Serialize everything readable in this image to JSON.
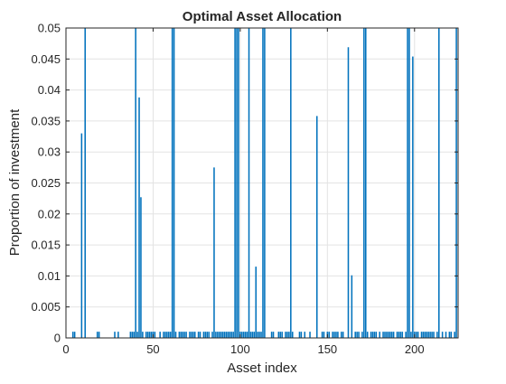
{
  "chart_data": {
    "type": "bar",
    "title": "Optimal Asset Allocation",
    "xlabel": "Asset index",
    "ylabel": "Proportion of investment",
    "xlim": [
      0,
      225
    ],
    "ylim": [
      0,
      0.05
    ],
    "x_ticks": [
      0,
      50,
      100,
      150,
      200
    ],
    "x_tick_labels": [
      "0",
      "50",
      "100",
      "150",
      "200"
    ],
    "y_ticks": [
      0,
      0.005,
      0.01,
      0.015,
      0.02,
      0.025,
      0.03,
      0.035,
      0.04,
      0.045,
      0.05
    ],
    "y_tick_labels": [
      "0",
      "0.005",
      "0.01",
      "0.015",
      "0.02",
      "0.025",
      "0.03",
      "0.035",
      "0.04",
      "0.045",
      "0.05"
    ],
    "grid": true,
    "bar_color": "#0072BD",
    "series": [
      {
        "x": [
          4,
          5,
          9,
          11,
          18,
          19,
          28,
          30,
          37,
          38,
          39,
          40,
          41,
          42,
          43,
          44,
          46,
          47,
          48,
          49,
          50,
          51,
          54,
          56,
          57,
          58,
          59,
          60,
          61,
          62,
          63,
          65,
          66,
          67,
          68,
          69,
          71,
          72,
          73,
          74,
          76,
          77,
          79,
          80,
          81,
          82,
          84,
          85,
          86,
          87,
          88,
          89,
          90,
          91,
          92,
          93,
          94,
          95,
          96,
          97,
          98,
          99,
          100,
          101,
          102,
          103,
          104,
          105,
          106,
          107,
          108,
          109,
          110,
          111,
          112,
          113,
          114,
          118,
          119,
          122,
          123,
          124,
          126,
          127,
          128,
          129,
          130,
          134,
          135,
          137,
          140,
          144,
          147,
          148,
          150,
          151,
          153,
          154,
          155,
          156,
          158,
          159,
          162,
          164,
          166,
          167,
          168,
          170,
          171,
          172,
          173,
          175,
          176,
          177,
          178,
          180,
          182,
          183,
          184,
          185,
          186,
          187,
          188,
          190,
          191,
          192,
          193,
          195,
          196,
          197,
          198,
          199,
          200,
          201,
          202,
          204,
          205,
          206,
          207,
          208,
          209,
          210,
          211,
          213,
          214,
          216,
          218,
          220,
          221,
          223,
          224
        ],
        "values": [
          0.001,
          0.001,
          0.033,
          0.05,
          0.001,
          0.001,
          0.001,
          0.001,
          0.001,
          0.001,
          0.001,
          0.05,
          0.001,
          0.0388,
          0.0227,
          0.001,
          0.001,
          0.001,
          0.001,
          0.001,
          0.001,
          0.001,
          0.001,
          0.001,
          0.001,
          0.001,
          0.001,
          0.001,
          0.05,
          0.05,
          0.001,
          0.001,
          0.001,
          0.001,
          0.001,
          0.001,
          0.001,
          0.001,
          0.001,
          0.001,
          0.001,
          0.001,
          0.001,
          0.001,
          0.001,
          0.001,
          0.001,
          0.0275,
          0.001,
          0.001,
          0.001,
          0.001,
          0.001,
          0.001,
          0.001,
          0.001,
          0.001,
          0.001,
          0.001,
          0.05,
          0.05,
          0.05,
          0.001,
          0.001,
          0.001,
          0.001,
          0.001,
          0.05,
          0.001,
          0.001,
          0.001,
          0.0115,
          0.001,
          0.001,
          0.001,
          0.05,
          0.05,
          0.001,
          0.001,
          0.001,
          0.001,
          0.001,
          0.001,
          0.001,
          0.001,
          0.05,
          0.001,
          0.001,
          0.001,
          0.001,
          0.001,
          0.0358,
          0.001,
          0.001,
          0.001,
          0.001,
          0.001,
          0.001,
          0.001,
          0.001,
          0.001,
          0.001,
          0.0469,
          0.0101,
          0.001,
          0.001,
          0.001,
          0.001,
          0.05,
          0.05,
          0.001,
          0.001,
          0.001,
          0.001,
          0.001,
          0.001,
          0.001,
          0.001,
          0.001,
          0.001,
          0.001,
          0.001,
          0.001,
          0.001,
          0.001,
          0.001,
          0.001,
          0.001,
          0.05,
          0.05,
          0.001,
          0.0454,
          0.001,
          0.001,
          0.001,
          0.001,
          0.001,
          0.001,
          0.001,
          0.001,
          0.001,
          0.001,
          0.001,
          0.001,
          0.05,
          0.001,
          0.001,
          0.001,
          0.001,
          0.001,
          0.05
        ]
      }
    ]
  }
}
